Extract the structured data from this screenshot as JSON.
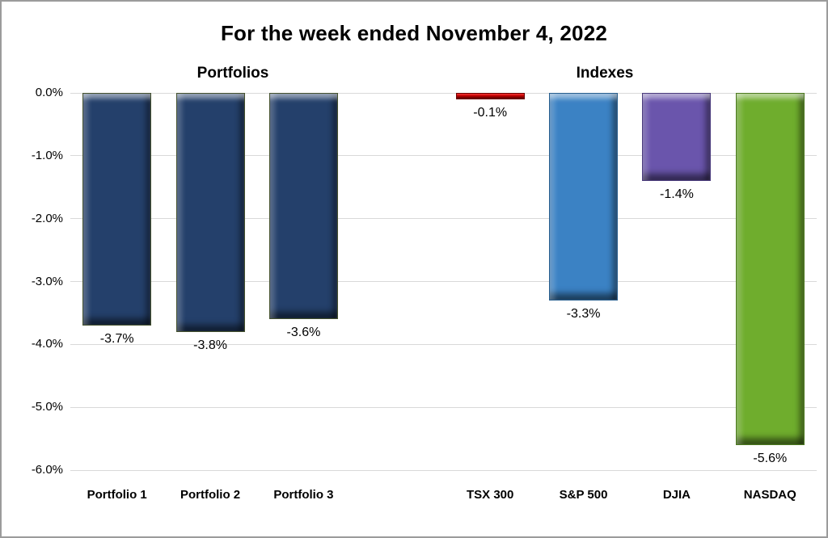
{
  "title": "For the week ended November 4, 2022",
  "group_labels": {
    "left": "Portfolios",
    "right": "Indexes"
  },
  "colors": {
    "background": "#FFFFFF",
    "chart_border": "#9B9B9B",
    "gridline": "#D9D9D9",
    "text": "#000000"
  },
  "chart_data": {
    "type": "bar",
    "title": "For the week ended November 4, 2022",
    "categories": [
      "Portfolio 1",
      "Portfolio 2",
      "Portfolio 3",
      "",
      "TSX 300",
      "S&P 500",
      "DJIA",
      "NASDAQ"
    ],
    "values": [
      -3.7,
      -3.8,
      -3.6,
      null,
      -0.1,
      -3.3,
      -1.4,
      -5.6
    ],
    "data_labels": [
      "-3.7%",
      "-3.8%",
      "-3.6%",
      "",
      "-0.1%",
      "-3.3%",
      "-1.4%",
      "-5.6%"
    ],
    "bar_colors": [
      {
        "fill": "#24406B",
        "border": "#44512D"
      },
      {
        "fill": "#24406B",
        "border": "#44512D"
      },
      {
        "fill": "#24406B",
        "border": "#44512D"
      },
      null,
      {
        "fill": "#C00000",
        "border": "#6B0000"
      },
      {
        "fill": "#3B82C4",
        "border": "#275E8E"
      },
      {
        "fill": "#6A55AC",
        "border": "#4A3B7C"
      },
      {
        "fill": "#6FAD2D",
        "border": "#4C7A1E"
      }
    ],
    "groups": [
      {
        "label": "Portfolios",
        "span": [
          0,
          2
        ]
      },
      {
        "label": "Indexes",
        "span": [
          4,
          7
        ]
      }
    ],
    "ylim": [
      -6.0,
      0.0
    ],
    "yticks": [
      "0.0%",
      "-1.0%",
      "-2.0%",
      "-3.0%",
      "-4.0%",
      "-5.0%",
      "-6.0%"
    ],
    "xlabel": "",
    "ylabel": "",
    "grid": true,
    "legend": "none",
    "bar_style": "beveled-3d"
  }
}
